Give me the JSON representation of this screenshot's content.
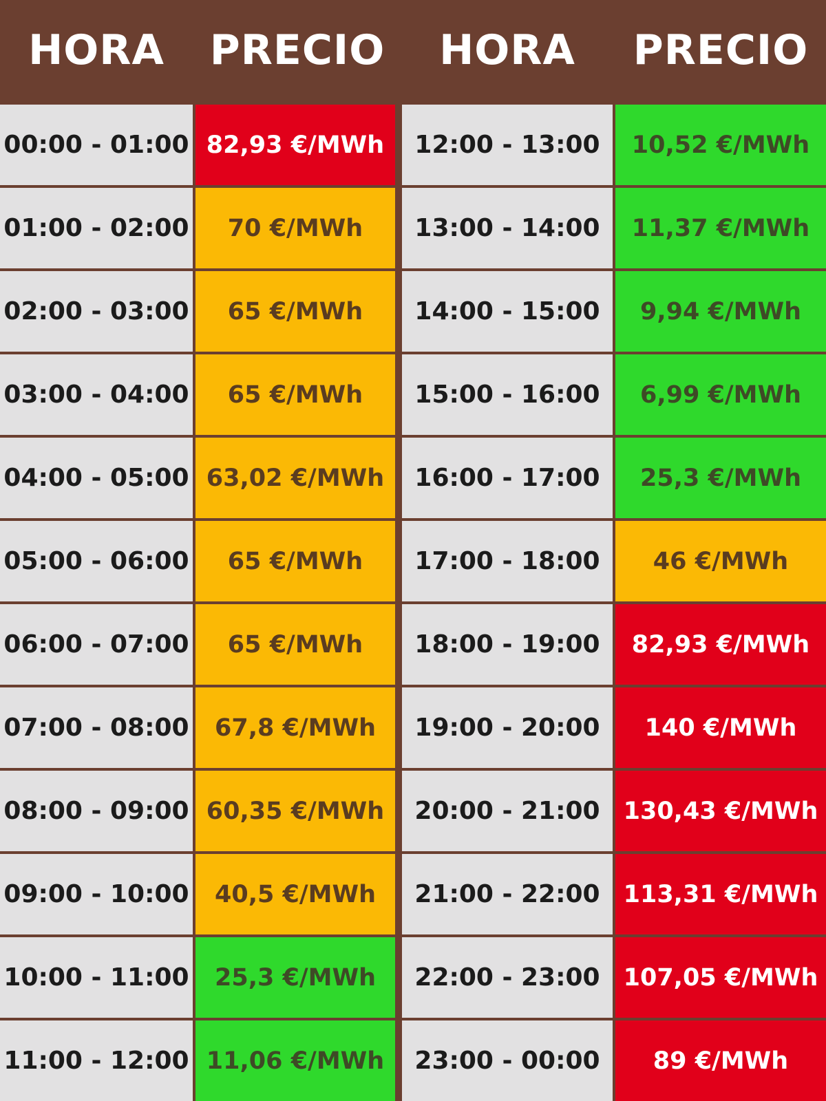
{
  "headers": [
    "HORA",
    "PRECIO",
    "HORA",
    "PRECIO"
  ],
  "colors": {
    "frame": "#6b3f30",
    "hour_background": "#e2e1e2",
    "red": "#e1001a",
    "orange": "#fbb905",
    "green": "#2fd92c"
  },
  "chart_data": {
    "type": "table",
    "columns": [
      "HORA",
      "PRECIO"
    ],
    "unit": "€/MWh",
    "rows": [
      {
        "hour": "00:00 - 01:00",
        "price_label": "82,93 €/MWh",
        "price": 82.93,
        "tier": "red"
      },
      {
        "hour": "01:00 - 02:00",
        "price_label": "70 €/MWh",
        "price": 70,
        "tier": "orange"
      },
      {
        "hour": "02:00 - 03:00",
        "price_label": "65 €/MWh",
        "price": 65,
        "tier": "orange"
      },
      {
        "hour": "03:00 - 04:00",
        "price_label": "65 €/MWh",
        "price": 65,
        "tier": "orange"
      },
      {
        "hour": "04:00 - 05:00",
        "price_label": "63,02 €/MWh",
        "price": 63.02,
        "tier": "orange"
      },
      {
        "hour": "05:00 - 06:00",
        "price_label": "65 €/MWh",
        "price": 65,
        "tier": "orange"
      },
      {
        "hour": "06:00 - 07:00",
        "price_label": "65 €/MWh",
        "price": 65,
        "tier": "orange"
      },
      {
        "hour": "07:00 - 08:00",
        "price_label": "67,8 €/MWh",
        "price": 67.8,
        "tier": "orange"
      },
      {
        "hour": "08:00 - 09:00",
        "price_label": "60,35 €/MWh",
        "price": 60.35,
        "tier": "orange"
      },
      {
        "hour": "09:00 - 10:00",
        "price_label": "40,5 €/MWh",
        "price": 40.5,
        "tier": "orange"
      },
      {
        "hour": "10:00 - 11:00",
        "price_label": "25,3 €/MWh",
        "price": 25.3,
        "tier": "green"
      },
      {
        "hour": "11:00 - 12:00",
        "price_label": "11,06 €/MWh",
        "price": 11.06,
        "tier": "green"
      },
      {
        "hour": "12:00 - 13:00",
        "price_label": "10,52 €/MWh",
        "price": 10.52,
        "tier": "green"
      },
      {
        "hour": "13:00 - 14:00",
        "price_label": "11,37 €/MWh",
        "price": 11.37,
        "tier": "green"
      },
      {
        "hour": "14:00 - 15:00",
        "price_label": "9,94 €/MWh",
        "price": 9.94,
        "tier": "green"
      },
      {
        "hour": "15:00 - 16:00",
        "price_label": "6,99 €/MWh",
        "price": 6.99,
        "tier": "green"
      },
      {
        "hour": "16:00 - 17:00",
        "price_label": "25,3 €/MWh",
        "price": 25.3,
        "tier": "green"
      },
      {
        "hour": "17:00 - 18:00",
        "price_label": "46 €/MWh",
        "price": 46,
        "tier": "orange"
      },
      {
        "hour": "18:00 - 19:00",
        "price_label": "82,93 €/MWh",
        "price": 82.93,
        "tier": "red"
      },
      {
        "hour": "19:00 - 20:00",
        "price_label": "140 €/MWh",
        "price": 140,
        "tier": "red"
      },
      {
        "hour": "20:00 - 21:00",
        "price_label": "130,43 €/MWh",
        "price": 130.43,
        "tier": "red"
      },
      {
        "hour": "21:00 - 22:00",
        "price_label": "113,31 €/MWh",
        "price": 113.31,
        "tier": "red"
      },
      {
        "hour": "22:00 - 23:00",
        "price_label": "107,05 €/MWh",
        "price": 107.05,
        "tier": "red"
      },
      {
        "hour": "23:00 - 00:00",
        "price_label": "89 €/MWh",
        "price": 89,
        "tier": "red"
      }
    ]
  }
}
